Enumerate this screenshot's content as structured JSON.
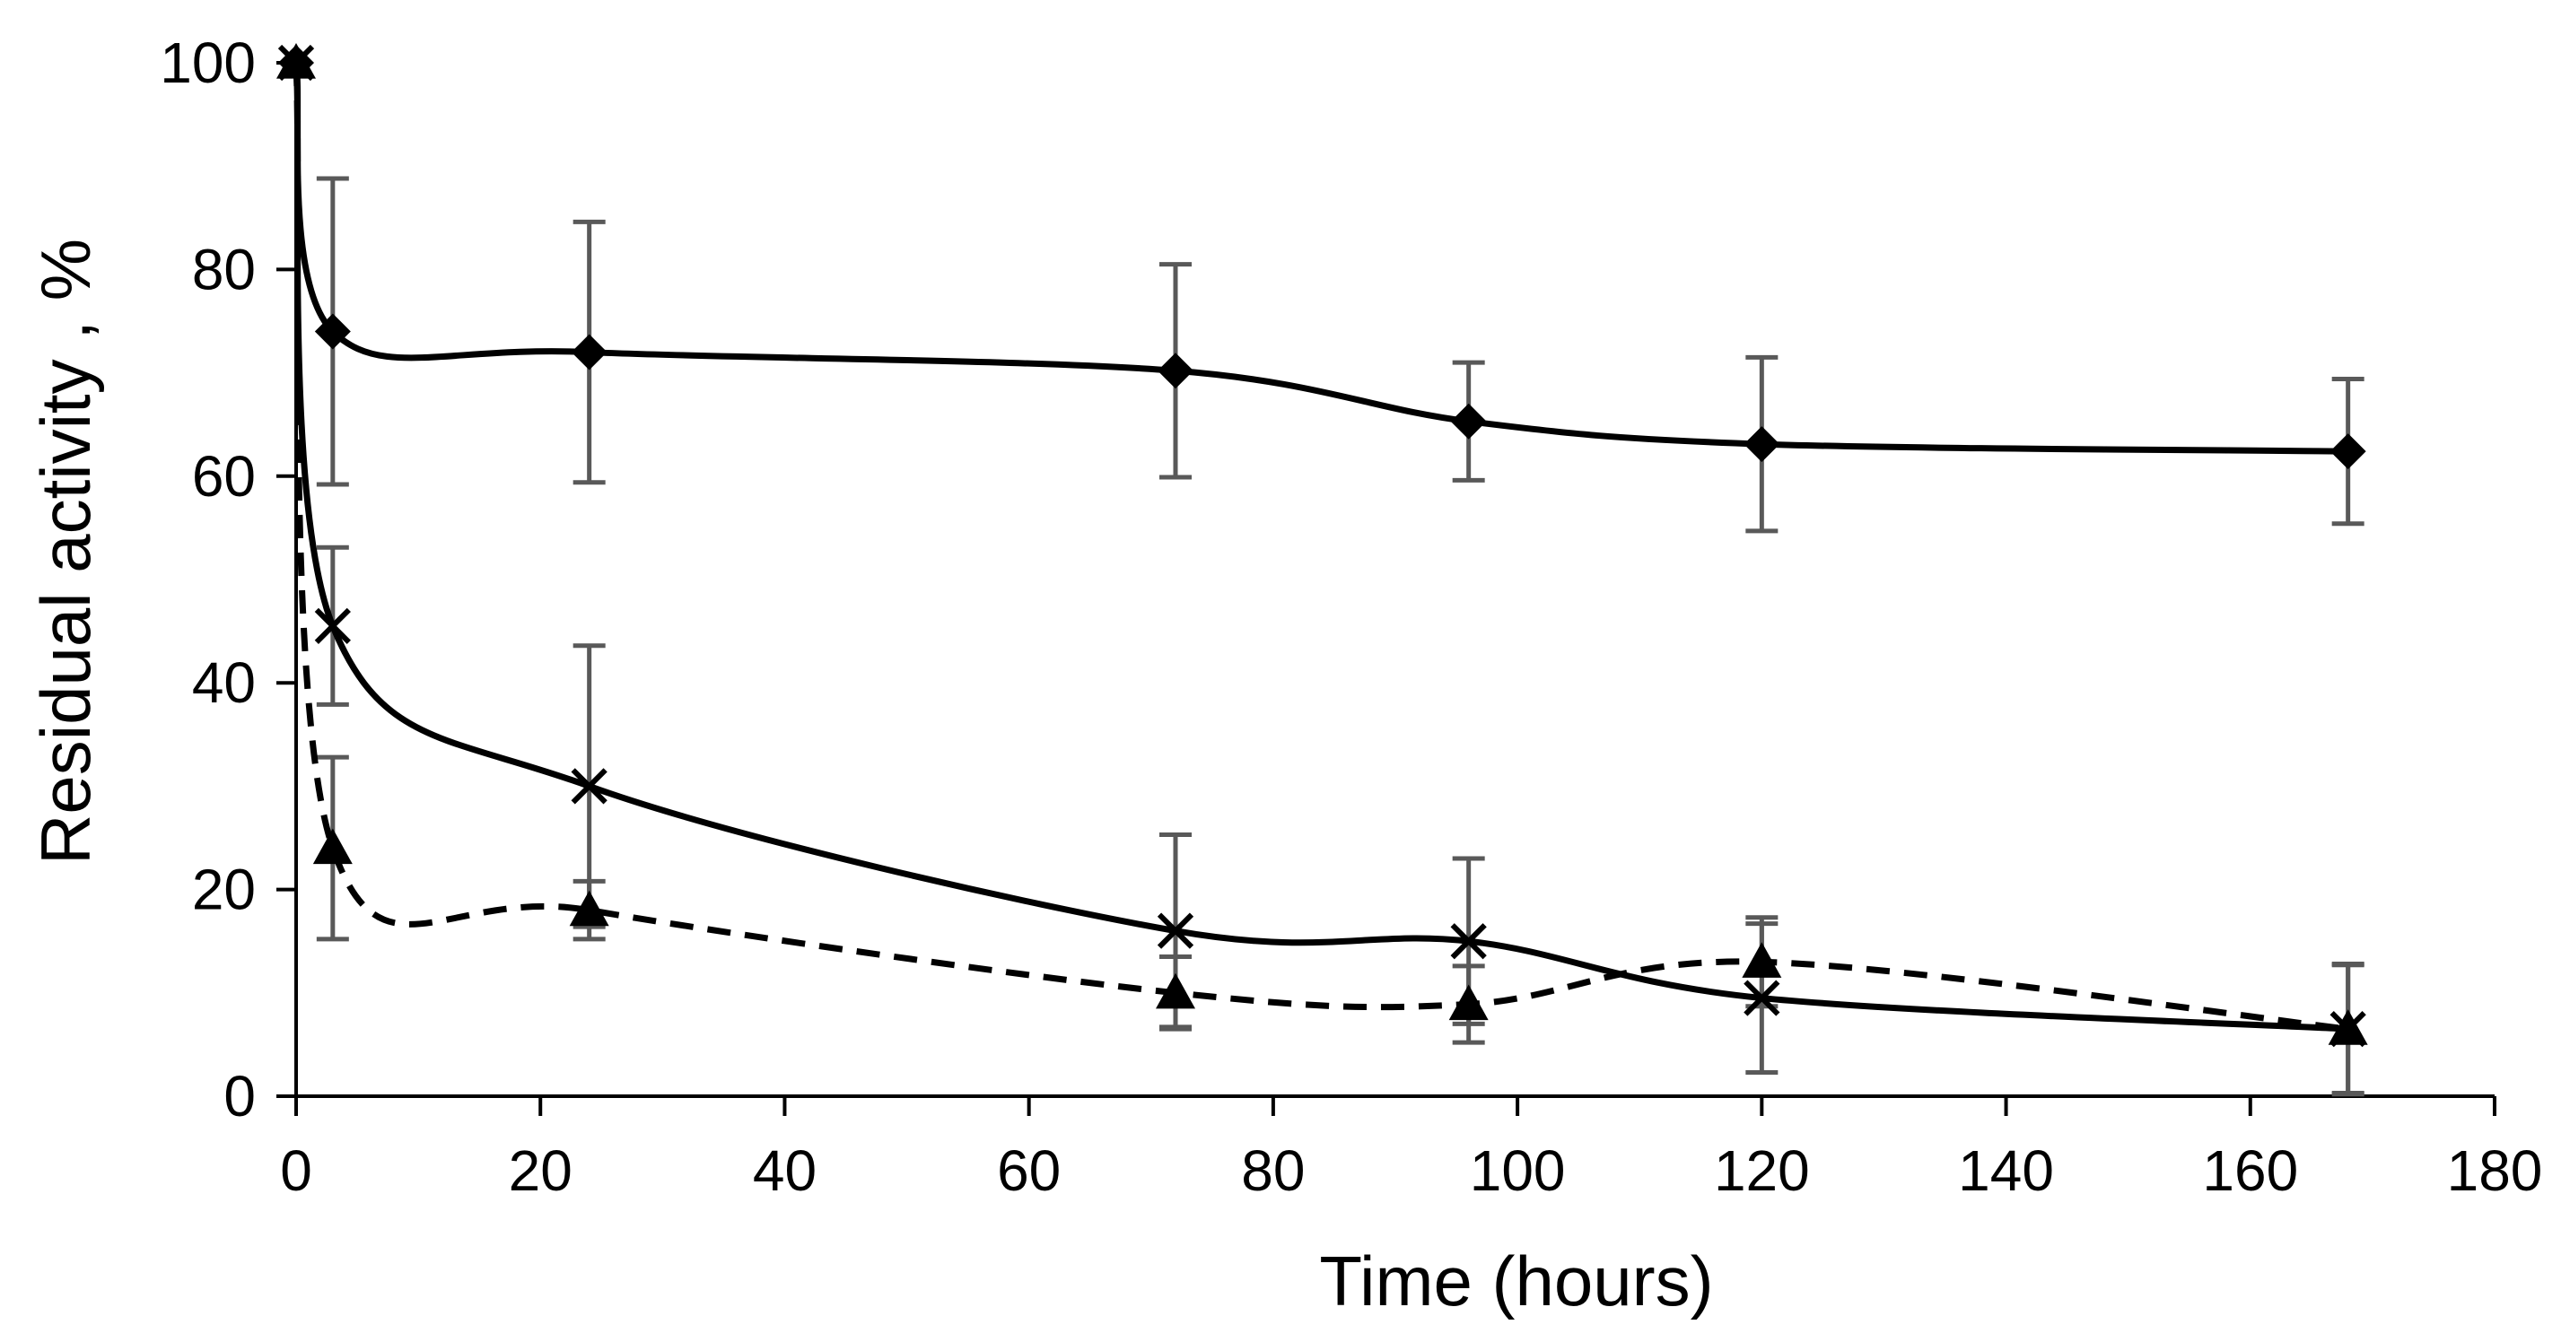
{
  "chart_data": {
    "type": "line",
    "title": "",
    "xlabel": "Time (hours)",
    "ylabel": "Residual activity , %",
    "xlim": [
      0,
      180
    ],
    "ylim": [
      0,
      100
    ],
    "xticks": [
      0,
      20,
      40,
      60,
      80,
      100,
      120,
      140,
      160,
      180
    ],
    "yticks": [
      0,
      20,
      40,
      60,
      80,
      100
    ],
    "grid": false,
    "legend": "none",
    "series": [
      {
        "name": "diamond",
        "marker": "diamond",
        "line_style": "solid",
        "x": [
          0,
          3,
          24,
          72,
          96,
          120,
          168
        ],
        "y": [
          100,
          74,
          72,
          70.2,
          65.3,
          63.1,
          62.4
        ],
        "err": [
          0,
          14.8,
          12.6,
          10.3,
          5.7,
          8.4,
          7.0
        ]
      },
      {
        "name": "cross",
        "marker": "x",
        "line_style": "solid",
        "x": [
          0,
          3,
          24,
          72,
          96,
          120,
          168
        ],
        "y": [
          100,
          45.5,
          30,
          16,
          15,
          9.5,
          6.5
        ],
        "err": [
          0,
          7.6,
          13.6,
          9.3,
          8.0,
          7.2,
          6.2
        ]
      },
      {
        "name": "triangle",
        "marker": "triangle",
        "line_style": "dashed",
        "x": [
          0,
          3,
          24,
          72,
          96,
          120,
          168
        ],
        "y": [
          100,
          24,
          18,
          10,
          8.9,
          13,
          6.5
        ],
        "err": [
          0,
          8.8,
          2.8,
          3.5,
          3.7,
          4.3,
          6.3
        ]
      }
    ]
  }
}
